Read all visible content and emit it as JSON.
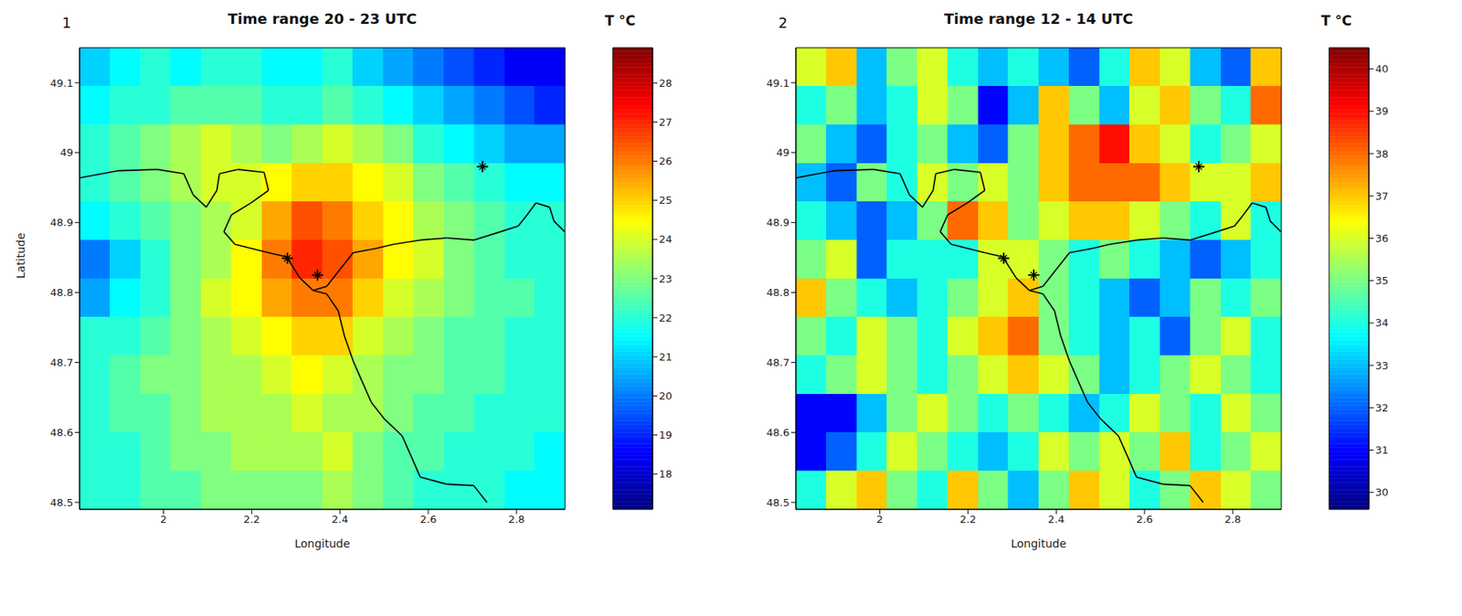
{
  "chart_data": [
    {
      "type": "heatmap",
      "title": "Time range 20 - 23 UTC",
      "panel_label": "1",
      "x_label": "Longitude",
      "y_label": "Latitude",
      "xlim": [
        1.81,
        2.91
      ],
      "ylim": [
        48.49,
        49.15
      ],
      "xticks": [
        2,
        2.2,
        2.4,
        2.6,
        2.8
      ],
      "yticks": [
        48.5,
        48.6,
        48.7,
        48.8,
        48.9,
        49,
        49.1
      ],
      "lon_edges": [
        1.81,
        1.879,
        1.948,
        2.016,
        2.085,
        2.154,
        2.223,
        2.291,
        2.36,
        2.429,
        2.498,
        2.566,
        2.635,
        2.704,
        2.773,
        2.841,
        2.91
      ],
      "lat_edges": [
        49.15,
        49.095,
        49.04,
        48.985,
        48.93,
        48.875,
        48.82,
        48.765,
        48.71,
        48.655,
        48.6,
        48.545,
        48.49
      ],
      "cells": [
        [
          21,
          21.5,
          22,
          21.5,
          22,
          22,
          21.5,
          21.5,
          22,
          21,
          20.5,
          20,
          19.5,
          19,
          18.5,
          18.5
        ],
        [
          21.5,
          22,
          22,
          22.5,
          22.5,
          22.5,
          22,
          22,
          22.5,
          22,
          21.5,
          21,
          20.5,
          20,
          19.5,
          19
        ],
        [
          22,
          22.5,
          23,
          23.5,
          24,
          23.5,
          23,
          23.5,
          24,
          23.5,
          23,
          22,
          21.5,
          21,
          20.5,
          20.5
        ],
        [
          22,
          22.5,
          23,
          23.5,
          24,
          24,
          24.5,
          25,
          25,
          24.5,
          24,
          23,
          22.5,
          22,
          21.5,
          21.5
        ],
        [
          21.5,
          22,
          22.5,
          23,
          23.5,
          24,
          25.5,
          26.5,
          26,
          25,
          24.5,
          23.5,
          23,
          22.5,
          22,
          22
        ],
        [
          20,
          21,
          22,
          23,
          23.5,
          24.5,
          26,
          27,
          26.5,
          25.5,
          24.5,
          24,
          23,
          22.5,
          22,
          22
        ],
        [
          20.5,
          21.5,
          22,
          23,
          24,
          24.5,
          25.5,
          26,
          26,
          25,
          24,
          23.5,
          23,
          22.5,
          22.5,
          22
        ],
        [
          22,
          22,
          22.5,
          23,
          23.5,
          24,
          24.5,
          25,
          25,
          24,
          23.5,
          23,
          22.5,
          22.5,
          22,
          22
        ],
        [
          22,
          22.5,
          23,
          23,
          23.5,
          23.5,
          24,
          24.5,
          24,
          23.5,
          23,
          23,
          22.5,
          22.5,
          22,
          22
        ],
        [
          22,
          22.5,
          22.5,
          23,
          23.5,
          23.5,
          23.5,
          24,
          23.5,
          23.5,
          23,
          22.5,
          22.5,
          22,
          22,
          22
        ],
        [
          22,
          22,
          22.5,
          23,
          23,
          23.5,
          23.5,
          23.5,
          24,
          23,
          22.5,
          22.5,
          22,
          22,
          22,
          21.5
        ],
        [
          22,
          22,
          22.5,
          22.5,
          23,
          23,
          23,
          23,
          23.5,
          23,
          22.5,
          22,
          22,
          22,
          21.5,
          21.5
        ]
      ],
      "colorbar": {
        "title": "T °C",
        "range": [
          17.1,
          28.9
        ],
        "ticks": [
          18,
          19,
          20,
          21,
          22,
          23,
          24,
          25,
          26,
          27,
          28
        ]
      },
      "rivers": [
        {
          "x": [
            1.81,
            1.895,
            1.986,
            2.046,
            2.067,
            2.097,
            2.121,
            2.127,
            2.168,
            2.228,
            2.238,
            2.198,
            2.154,
            2.137,
            2.162,
            2.238,
            2.279,
            2.309,
            2.339
          ],
          "y": [
            48.964,
            48.974,
            48.976,
            48.97,
            48.94,
            48.922,
            48.946,
            48.97,
            48.976,
            48.972,
            48.946,
            48.928,
            48.911,
            48.887,
            48.869,
            48.857,
            48.851,
            48.821,
            48.803
          ]
        },
        {
          "x": [
            2.339,
            2.37,
            2.4,
            2.43,
            2.481,
            2.521,
            2.582,
            2.642,
            2.703,
            2.764,
            2.804,
            2.824,
            2.844,
            2.875,
            2.885,
            2.909
          ],
          "y": [
            48.803,
            48.809,
            48.833,
            48.857,
            48.863,
            48.869,
            48.875,
            48.878,
            48.875,
            48.887,
            48.895,
            48.911,
            48.928,
            48.922,
            48.902,
            48.887
          ]
        },
        {
          "x": [
            2.339,
            2.37,
            2.396,
            2.41,
            2.43,
            2.45,
            2.471,
            2.501,
            2.541,
            2.562,
            2.582,
            2.642,
            2.703,
            2.733
          ],
          "y": [
            48.803,
            48.798,
            48.774,
            48.738,
            48.702,
            48.673,
            48.643,
            48.619,
            48.595,
            48.565,
            48.536,
            48.526,
            48.524,
            48.5
          ]
        }
      ],
      "markers": {
        "x": [
          2.281,
          2.349,
          2.723
        ],
        "y": [
          48.849,
          48.825,
          48.98
        ],
        "marker": "star",
        "color": "#000000"
      }
    },
    {
      "type": "heatmap",
      "title": "Time range 12 - 14 UTC",
      "panel_label": "2",
      "x_label": "Longitude",
      "xlim": [
        1.81,
        2.91
      ],
      "ylim": [
        48.49,
        49.15
      ],
      "xticks": [
        2,
        2.2,
        2.4,
        2.6,
        2.8
      ],
      "yticks": [
        48.5,
        48.6,
        48.7,
        48.8,
        48.9,
        49,
        49.1
      ],
      "lon_edges": [
        1.81,
        1.879,
        1.948,
        2.016,
        2.085,
        2.154,
        2.223,
        2.291,
        2.36,
        2.429,
        2.498,
        2.566,
        2.635,
        2.704,
        2.773,
        2.841,
        2.91
      ],
      "lat_edges": [
        49.15,
        49.095,
        49.04,
        48.985,
        48.93,
        48.875,
        48.82,
        48.765,
        48.71,
        48.655,
        48.6,
        48.545,
        48.49
      ],
      "cells": [
        [
          36,
          37,
          33,
          35,
          36,
          34,
          33,
          34,
          33,
          32,
          34,
          37,
          36,
          33,
          32,
          37
        ],
        [
          34,
          35,
          33,
          34,
          36,
          35,
          31,
          33,
          37,
          35,
          33,
          36,
          37,
          35,
          34,
          38
        ],
        [
          35,
          33,
          32,
          34,
          35,
          33,
          32,
          35,
          37,
          38,
          39,
          37,
          36,
          34,
          35,
          36
        ],
        [
          33,
          32,
          35,
          34,
          36,
          35,
          36,
          35,
          37,
          38,
          38,
          38,
          37,
          36,
          36,
          37
        ],
        [
          34,
          33,
          32,
          33,
          35,
          38,
          37,
          35,
          36,
          37,
          37,
          36,
          35,
          34,
          36,
          34
        ],
        [
          35,
          36,
          32,
          34,
          34,
          34,
          36,
          36,
          35,
          34,
          35,
          34,
          33,
          32,
          33,
          34
        ],
        [
          37,
          35,
          34,
          33,
          34,
          35,
          36,
          37,
          35,
          34,
          33,
          32,
          33,
          35,
          34,
          35
        ],
        [
          35,
          34,
          36,
          35,
          34,
          36,
          37,
          38,
          35,
          34,
          33,
          34,
          32,
          35,
          36,
          34
        ],
        [
          34,
          35,
          36,
          35,
          34,
          35,
          36,
          37,
          36,
          35,
          33,
          34,
          35,
          36,
          35,
          34
        ],
        [
          31,
          31,
          33,
          35,
          36,
          35,
          34,
          35,
          34,
          33,
          34,
          36,
          35,
          34,
          36,
          35
        ],
        [
          31,
          32,
          34,
          36,
          35,
          34,
          33,
          34,
          36,
          35,
          36,
          35,
          37,
          34,
          35,
          36
        ],
        [
          34,
          36,
          37,
          35,
          34,
          37,
          35,
          33,
          35,
          37,
          36,
          34,
          35,
          37,
          36,
          35
        ]
      ],
      "colorbar": {
        "title": "T °C",
        "range": [
          29.6,
          40.5
        ],
        "ticks": [
          30,
          31,
          32,
          33,
          34,
          35,
          36,
          37,
          38,
          39,
          40
        ]
      },
      "rivers": [
        {
          "x": [
            1.81,
            1.895,
            1.986,
            2.046,
            2.067,
            2.097,
            2.121,
            2.127,
            2.168,
            2.228,
            2.238,
            2.198,
            2.154,
            2.137,
            2.162,
            2.238,
            2.279,
            2.309,
            2.339
          ],
          "y": [
            48.964,
            48.974,
            48.976,
            48.97,
            48.94,
            48.922,
            48.946,
            48.97,
            48.976,
            48.972,
            48.946,
            48.928,
            48.911,
            48.887,
            48.869,
            48.857,
            48.851,
            48.821,
            48.803
          ]
        },
        {
          "x": [
            2.339,
            2.37,
            2.4,
            2.43,
            2.481,
            2.521,
            2.582,
            2.642,
            2.703,
            2.764,
            2.804,
            2.824,
            2.844,
            2.875,
            2.885,
            2.909
          ],
          "y": [
            48.803,
            48.809,
            48.833,
            48.857,
            48.863,
            48.869,
            48.875,
            48.878,
            48.875,
            48.887,
            48.895,
            48.911,
            48.928,
            48.922,
            48.902,
            48.887
          ]
        },
        {
          "x": [
            2.339,
            2.37,
            2.396,
            2.41,
            2.43,
            2.45,
            2.471,
            2.501,
            2.541,
            2.562,
            2.582,
            2.642,
            2.703,
            2.733
          ],
          "y": [
            48.803,
            48.798,
            48.774,
            48.738,
            48.702,
            48.673,
            48.643,
            48.619,
            48.595,
            48.565,
            48.536,
            48.526,
            48.524,
            48.5
          ]
        }
      ],
      "markers": {
        "x": [
          2.281,
          2.349,
          2.723
        ],
        "y": [
          48.849,
          48.825,
          48.98
        ],
        "marker": "star",
        "color": "#000000"
      }
    }
  ]
}
